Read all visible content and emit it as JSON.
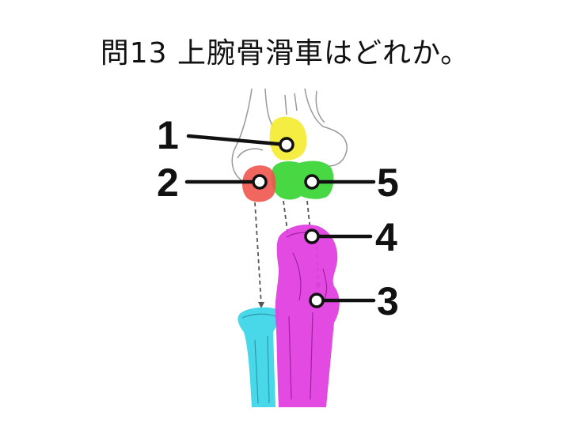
{
  "title": "問13 上腕骨滑車はどれか。",
  "markers": [
    {
      "label": "1",
      "color": "#f3ea21"
    },
    {
      "label": "2",
      "color": "#f0564e"
    },
    {
      "label": "3",
      "color": "#d63ad6"
    },
    {
      "label": "4",
      "color": "#d63ad6"
    },
    {
      "label": "5",
      "color": "#3ed63a"
    }
  ],
  "colors": {
    "ulna": "#e040e0",
    "radius": "#3fd6e8",
    "trochlea_area": "#3ed63a",
    "capitulum": "#f0564e",
    "epicondyle": "#f3ea21",
    "line": "#111111",
    "sketch": "#9a9a9a"
  }
}
